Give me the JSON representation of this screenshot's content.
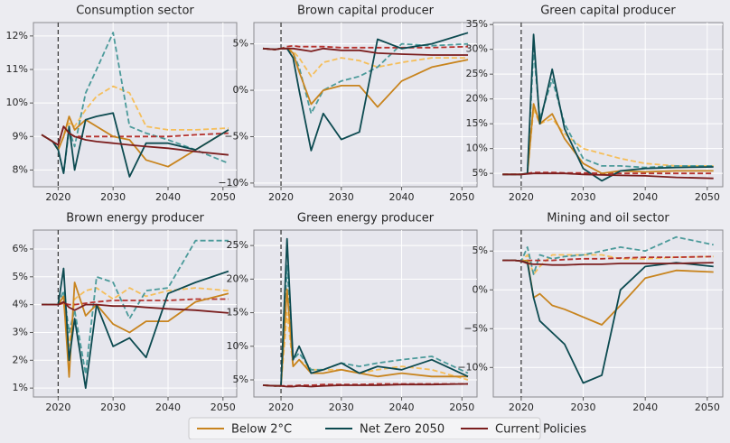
{
  "chart_data": [
    {
      "type": "line",
      "title": "Consumption sector",
      "x": [
        2017,
        2019,
        2020,
        2021,
        2022,
        2023,
        2025,
        2027,
        2030,
        2033,
        2036,
        2040,
        2045,
        2051
      ],
      "xlim": [
        2015.5,
        2052.5
      ],
      "xticks": [
        2020,
        2030,
        2040,
        2050
      ],
      "ylim": [
        7.5,
        12.4
      ],
      "yticks": [
        {
          "value": 8,
          "label": "8%"
        },
        {
          "value": 9,
          "label": "9%"
        },
        {
          "value": 10,
          "label": "10%"
        },
        {
          "value": 11,
          "label": "11%"
        },
        {
          "value": 12,
          "label": "12%"
        }
      ],
      "vline": 2020,
      "grid": true,
      "series": [
        {
          "name": "Below 2°C",
          "color": "#c8841e",
          "values": [
            9.05,
            8.85,
            8.6,
            9.0,
            9.6,
            9.2,
            9.5,
            9.3,
            9.0,
            8.9,
            8.3,
            8.1,
            8.6,
            9.2
          ]
        },
        {
          "name": "Net Zero 2050",
          "color": "#0c4a50",
          "values": [
            9.05,
            8.85,
            8.6,
            7.9,
            9.3,
            8.0,
            9.5,
            9.6,
            9.7,
            7.8,
            8.8,
            8.8,
            8.6,
            9.2
          ]
        },
        {
          "name": "Current Policies",
          "color": "#7b1e1e",
          "values": [
            9.05,
            8.85,
            8.75,
            9.3,
            9.1,
            9.0,
            8.9,
            8.85,
            8.8,
            8.75,
            8.7,
            8.65,
            8.55,
            8.45
          ]
        },
        {
          "color": "#f5be5a",
          "dash": true,
          "values": [
            9.05,
            8.85,
            8.6,
            9.0,
            9.4,
            9.3,
            9.8,
            10.2,
            10.5,
            10.3,
            9.3,
            9.2,
            9.2,
            9.25
          ]
        },
        {
          "color": "#4b9a9a",
          "dash": true,
          "values": [
            9.05,
            8.85,
            8.6,
            7.9,
            9.2,
            8.7,
            10.3,
            11.0,
            12.1,
            9.3,
            9.1,
            8.9,
            8.6,
            8.2
          ]
        },
        {
          "color": "#b5322e",
          "dash": true,
          "values": [
            9.05,
            8.85,
            8.75,
            9.3,
            9.1,
            9.0,
            9.0,
            9.0,
            9.0,
            9.0,
            9.0,
            9.0,
            9.05,
            9.1
          ]
        }
      ]
    },
    {
      "type": "line",
      "title": "Brown capital producer",
      "x": [
        2017,
        2019,
        2020,
        2021,
        2022,
        2023,
        2025,
        2027,
        2030,
        2033,
        2036,
        2040,
        2045,
        2051
      ],
      "xlim": [
        2015.5,
        2052.5
      ],
      "xticks": [
        2020,
        2030,
        2040,
        2050
      ],
      "ylim": [
        -10.4,
        7.3
      ],
      "yticks": [
        {
          "value": 5,
          "label": "5%"
        },
        {
          "value": 0,
          "label": "0%"
        },
        {
          "value": -5,
          "label": "−5%"
        },
        {
          "value": -10,
          "label": "−10%"
        }
      ],
      "vline": 2020,
      "grid": true,
      "series": [
        {
          "color": "#c8841e",
          "values": [
            4.5,
            4.4,
            4.5,
            4.5,
            4.0,
            2.0,
            -1.5,
            0,
            0.5,
            0.5,
            -1.8,
            1.0,
            2.5,
            3.3
          ]
        },
        {
          "color": "#0c4a50",
          "values": [
            4.5,
            4.4,
            4.5,
            4.5,
            3.5,
            0,
            -6.5,
            -2.5,
            -5.3,
            -4.5,
            5.5,
            4.5,
            5.0,
            6.2
          ]
        },
        {
          "color": "#7b1e1e",
          "values": [
            4.5,
            4.4,
            4.5,
            4.5,
            4.5,
            4.4,
            4.2,
            4.5,
            4.3,
            4.3,
            4.0,
            3.9,
            3.8,
            3.8
          ]
        },
        {
          "color": "#f5be5a",
          "dash": true,
          "values": [
            4.5,
            4.4,
            4.5,
            4.5,
            4.2,
            3.5,
            1.5,
            3.0,
            3.5,
            3.2,
            2.5,
            3.0,
            3.5,
            3.5
          ]
        },
        {
          "color": "#4b9a9a",
          "dash": true,
          "values": [
            4.5,
            4.4,
            4.5,
            4.5,
            4.0,
            2.5,
            -2.5,
            0,
            1.0,
            1.5,
            2.5,
            5.0,
            4.8,
            5.0
          ]
        },
        {
          "color": "#b5322e",
          "dash": true,
          "values": [
            4.5,
            4.4,
            4.5,
            4.7,
            4.8,
            4.7,
            4.7,
            4.7,
            4.6,
            4.6,
            4.6,
            4.6,
            4.6,
            4.7
          ]
        }
      ]
    },
    {
      "type": "line",
      "title": "Green capital producer",
      "x": [
        2017,
        2019,
        2020,
        2021,
        2022,
        2023,
        2025,
        2027,
        2030,
        2033,
        2036,
        2040,
        2045,
        2051
      ],
      "xlim": [
        2015.5,
        2052.5
      ],
      "xticks": [
        2020,
        2030,
        2040,
        2050
      ],
      "ylim": [
        2.3,
        35.4
      ],
      "yticks": [
        {
          "value": 5,
          "label": "5%"
        },
        {
          "value": 10,
          "label": "10%"
        },
        {
          "value": 15,
          "label": "15%"
        },
        {
          "value": 20,
          "label": "20%"
        },
        {
          "value": 25,
          "label": "25%"
        },
        {
          "value": 30,
          "label": "30%"
        },
        {
          "value": 35,
          "label": "35%"
        }
      ],
      "vline": 2020,
      "grid": true,
      "series": [
        {
          "color": "#c8841e",
          "values": [
            4.8,
            4.8,
            4.8,
            5,
            19,
            15,
            17,
            12,
            7,
            5,
            5.5,
            5.3,
            5.5,
            5.5
          ]
        },
        {
          "color": "#0c4a50",
          "values": [
            4.8,
            4.8,
            4.8,
            5,
            33,
            15,
            26,
            14,
            6,
            3.5,
            5.5,
            6.0,
            6.2,
            6.3
          ]
        },
        {
          "color": "#7b1e1e",
          "values": [
            4.8,
            4.8,
            4.8,
            4.9,
            5,
            5,
            5,
            5,
            4.8,
            4.7,
            4.6,
            4.5,
            4.2,
            4.0
          ]
        },
        {
          "color": "#f5be5a",
          "dash": true,
          "values": [
            4.8,
            4.8,
            4.8,
            5,
            18,
            15,
            16,
            13,
            10,
            9,
            8,
            7,
            6.5,
            6.5
          ]
        },
        {
          "color": "#4b9a9a",
          "dash": true,
          "values": [
            4.8,
            4.8,
            4.8,
            5,
            30,
            16,
            24,
            15,
            8,
            6.5,
            6.5,
            6.2,
            6.5,
            6.5
          ]
        },
        {
          "color": "#b5322e",
          "dash": true,
          "values": [
            4.8,
            4.8,
            4.8,
            5,
            5.2,
            5.2,
            5.2,
            5.1,
            5.1,
            5.0,
            5.0,
            5.0,
            5.0,
            5.0
          ]
        }
      ]
    },
    {
      "type": "line",
      "title": "Brown energy producer",
      "x": [
        2017,
        2019,
        2020,
        2021,
        2022,
        2023,
        2025,
        2027,
        2030,
        2033,
        2036,
        2040,
        2045,
        2051
      ],
      "xlim": [
        2015.5,
        2052.5
      ],
      "xticks": [
        2020,
        2030,
        2040,
        2050
      ],
      "ylim": [
        0.68,
        6.68
      ],
      "yticks": [
        {
          "value": 1,
          "label": "1%"
        },
        {
          "value": 2,
          "label": "2%"
        },
        {
          "value": 3,
          "label": "3%"
        },
        {
          "value": 4,
          "label": "4%"
        },
        {
          "value": 5,
          "label": "5%"
        },
        {
          "value": 6,
          "label": "6%"
        }
      ],
      "vline": 2020,
      "grid": true,
      "series": [
        {
          "color": "#c8841e",
          "values": [
            4.0,
            4.0,
            4.0,
            4.3,
            1.4,
            4.8,
            3.6,
            4.0,
            3.3,
            3.0,
            3.4,
            3.4,
            4.1,
            4.4
          ]
        },
        {
          "color": "#0c4a50",
          "values": [
            4.0,
            4.0,
            4.0,
            5.3,
            2.0,
            3.5,
            1.0,
            4.0,
            2.5,
            2.8,
            2.1,
            4.4,
            4.8,
            5.2
          ]
        },
        {
          "color": "#7b1e1e",
          "values": [
            4.0,
            4.0,
            4.0,
            4.1,
            3.9,
            3.8,
            4.0,
            4.0,
            3.95,
            3.95,
            3.9,
            3.85,
            3.8,
            3.7
          ]
        },
        {
          "color": "#f5be5a",
          "dash": true,
          "values": [
            4.0,
            4.0,
            4.0,
            4.1,
            2.5,
            4.2,
            4.5,
            4.6,
            4.2,
            4.6,
            4.3,
            4.5,
            4.6,
            4.5
          ]
        },
        {
          "color": "#4b9a9a",
          "dash": true,
          "values": [
            4.0,
            4.0,
            4.0,
            4.5,
            3.0,
            3.8,
            1.5,
            5.0,
            4.8,
            3.5,
            4.5,
            4.6,
            6.3,
            6.3
          ]
        },
        {
          "color": "#b5322e",
          "dash": true,
          "values": [
            4.0,
            4.0,
            4.0,
            4.05,
            4.0,
            4.0,
            4.05,
            4.1,
            4.15,
            4.15,
            4.15,
            4.15,
            4.2,
            4.2
          ]
        }
      ]
    },
    {
      "type": "line",
      "title": "Green energy producer",
      "x": [
        2017,
        2019,
        2020,
        2021,
        2022,
        2023,
        2025,
        2027,
        2030,
        2033,
        2036,
        2040,
        2045,
        2051
      ],
      "xlim": [
        2015.5,
        2052.5
      ],
      "xticks": [
        2020,
        2030,
        2040,
        2050
      ],
      "ylim": [
        2.45,
        27.3
      ],
      "yticks": [
        {
          "value": 5,
          "label": "5%"
        },
        {
          "value": 10,
          "label": "10%"
        },
        {
          "value": 15,
          "label": "15%"
        },
        {
          "value": 20,
          "label": "20%"
        },
        {
          "value": 25,
          "label": "25%"
        }
      ],
      "vline": 2020,
      "grid": true,
      "series": [
        {
          "color": "#c8841e",
          "values": [
            4.2,
            4.1,
            4.1,
            18.5,
            7,
            8,
            6,
            6,
            6.5,
            6,
            5.5,
            6,
            5.5,
            5.5
          ]
        },
        {
          "color": "#0c4a50",
          "values": [
            4.2,
            4.1,
            4.1,
            26,
            8,
            10,
            6,
            6.5,
            7.5,
            6,
            7,
            6.5,
            8,
            5.5
          ]
        },
        {
          "color": "#7b1e1e",
          "values": [
            4.2,
            4.1,
            4.1,
            4.0,
            4.0,
            4.1,
            4.0,
            4.1,
            4.2,
            4.2,
            4.2,
            4.3,
            4.3,
            4.4
          ]
        },
        {
          "color": "#f5be5a",
          "dash": true,
          "values": [
            4.2,
            4.1,
            4.1,
            15,
            7,
            8,
            6.5,
            6.5,
            6.5,
            6,
            6.5,
            7,
            6.5,
            5
          ]
        },
        {
          "color": "#4b9a9a",
          "dash": true,
          "values": [
            4.2,
            4.1,
            4.1,
            22,
            8,
            9,
            6.5,
            6.5,
            7.5,
            7,
            7.5,
            8,
            8.5,
            6
          ]
        },
        {
          "color": "#b5322e",
          "dash": true,
          "values": [
            4.2,
            4.1,
            4.1,
            4.1,
            4.1,
            4.2,
            4.2,
            4.3,
            4.3,
            4.3,
            4.4,
            4.4,
            4.4,
            4.4
          ]
        }
      ]
    },
    {
      "type": "line",
      "title": "Mining and oil sector",
      "x": [
        2017,
        2019,
        2020,
        2021,
        2022,
        2023,
        2025,
        2027,
        2030,
        2033,
        2036,
        2040,
        2045,
        2051
      ],
      "xlim": [
        2015.5,
        2052.5
      ],
      "xticks": [
        2020,
        2030,
        2040,
        2050
      ],
      "ylim": [
        -13.8,
        7.7
      ],
      "yticks": [
        {
          "value": 5,
          "label": "5%"
        },
        {
          "value": 0,
          "label": "0%"
        },
        {
          "value": -5,
          "label": "−5%"
        },
        {
          "value": -10,
          "label": "−10%"
        }
      ],
      "vline": 2020,
      "grid": true,
      "series": [
        {
          "color": "#c8841e",
          "values": [
            3.8,
            3.8,
            3.7,
            3.8,
            -1,
            -0.5,
            -2,
            -2.5,
            -3.5,
            -4.5,
            -2,
            1.5,
            2.5,
            2.3
          ]
        },
        {
          "color": "#0c4a50",
          "values": [
            3.8,
            3.8,
            3.7,
            3.5,
            -1,
            -4,
            -5.5,
            -7,
            -12,
            -11,
            0,
            3,
            3.5,
            3
          ]
        },
        {
          "color": "#7b1e1e",
          "values": [
            3.8,
            3.8,
            3.7,
            3.4,
            3.3,
            3.3,
            3.2,
            3.2,
            3.3,
            3.3,
            3.4,
            3.4,
            3.4,
            3.5
          ]
        },
        {
          "color": "#f5be5a",
          "dash": true,
          "values": [
            3.8,
            3.8,
            3.7,
            4.5,
            2,
            3,
            4.5,
            4.5,
            4.5,
            4.5,
            4.0,
            4.0,
            4.2,
            4.3
          ]
        },
        {
          "color": "#4b9a9a",
          "dash": true,
          "values": [
            3.8,
            3.8,
            3.7,
            5.5,
            2,
            4.5,
            4.0,
            4.3,
            4.5,
            5.0,
            5.5,
            5.0,
            6.8,
            5.8
          ]
        },
        {
          "color": "#b5322e",
          "dash": true,
          "values": [
            3.8,
            3.8,
            3.7,
            3.8,
            3.8,
            3.8,
            3.8,
            3.9,
            4.0,
            4.0,
            4.1,
            4.2,
            4.2,
            4.3
          ]
        }
      ]
    }
  ]
}
